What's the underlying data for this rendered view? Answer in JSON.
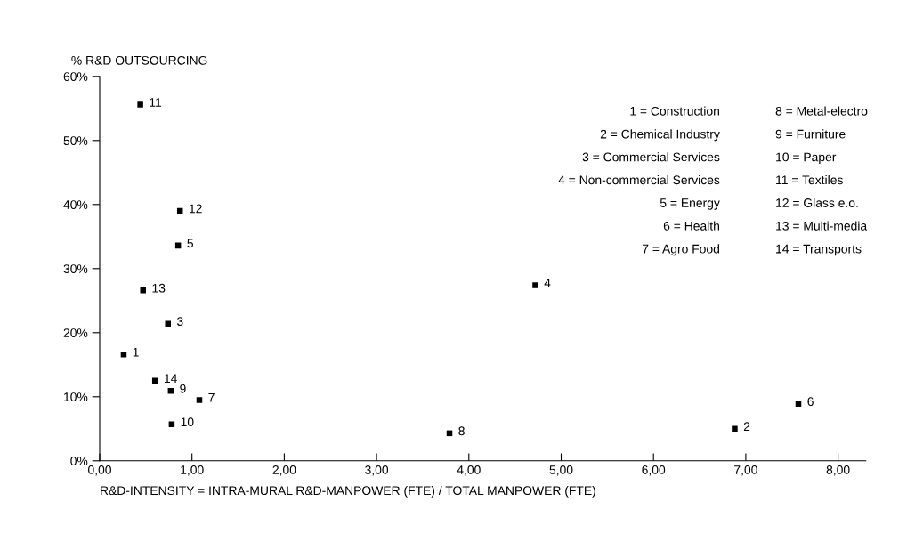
{
  "chart_data": {
    "type": "scatter",
    "ylabel": "% R&D OUTSOURCING",
    "xlabel": "R&D-INTENSITY = INTRA-MURAL R&D-MANPOWER (FTE) / TOTAL MANPOWER (FTE)",
    "x": [
      0.26,
      6.88,
      0.74,
      4.72,
      0.85,
      7.57,
      1.08,
      3.79,
      0.77,
      0.78,
      0.44,
      0.87,
      0.47,
      0.6
    ],
    "values": [
      16.6,
      5.0,
      21.4,
      27.4,
      33.6,
      8.9,
      9.5,
      4.3,
      10.9,
      5.7,
      55.6,
      39.0,
      26.6,
      12.5
    ],
    "color": "#000000",
    "marker": "square",
    "grid": false,
    "legend": false,
    "xlim": [
      0,
      8.3
    ],
    "ylim": [
      0,
      60
    ],
    "xticks": [
      {
        "value": 0,
        "label": "0,00"
      },
      {
        "value": 1,
        "label": "1,00"
      },
      {
        "value": 2,
        "label": "2,00"
      },
      {
        "value": 3,
        "label": "3,00"
      },
      {
        "value": 4,
        "label": "4,00"
      },
      {
        "value": 5,
        "label": "5,00"
      },
      {
        "value": 6,
        "label": "6,00"
      },
      {
        "value": 7,
        "label": "7,00"
      },
      {
        "value": 8,
        "label": "8,00"
      }
    ],
    "yticks": [
      {
        "value": 0,
        "label": "0%"
      },
      {
        "value": 10,
        "label": "10%"
      },
      {
        "value": 20,
        "label": "20%"
      },
      {
        "value": 30,
        "label": "30%"
      },
      {
        "value": 40,
        "label": "40%"
      },
      {
        "value": 50,
        "label": "50%"
      },
      {
        "value": 60,
        "label": "60%"
      }
    ],
    "annotations": [
      {
        "text": "1",
        "x": 0.26,
        "y": 16.6
      },
      {
        "text": "2",
        "x": 6.88,
        "y": 5.0
      },
      {
        "text": "3",
        "x": 0.74,
        "y": 21.4
      },
      {
        "text": "4",
        "x": 4.72,
        "y": 27.4
      },
      {
        "text": "5",
        "x": 0.85,
        "y": 33.6
      },
      {
        "text": "6",
        "x": 7.57,
        "y": 8.9
      },
      {
        "text": "7",
        "x": 1.08,
        "y": 9.5
      },
      {
        "text": "8",
        "x": 3.79,
        "y": 4.3
      },
      {
        "text": "9",
        "x": 0.77,
        "y": 10.9
      },
      {
        "text": "10",
        "x": 0.78,
        "y": 5.7
      },
      {
        "text": "11",
        "x": 0.44,
        "y": 55.6
      },
      {
        "text": "12",
        "x": 0.87,
        "y": 39.0
      },
      {
        "text": "13",
        "x": 0.47,
        "y": 26.6
      },
      {
        "text": "14",
        "x": 0.6,
        "y": 12.5
      },
      "1 = Construction",
      "2 = Chemical Industry",
      "3 = Commercial Services",
      "4 = Non-commercial Services",
      "5 = Energy",
      "6 = Health",
      "7 = Agro Food",
      "8 = Metal-electro",
      "9 = Furniture",
      "10 = Paper",
      "11 = Textiles",
      "12 = Glass e.o.",
      "13 = Multi-media",
      "14 = Transports"
    ]
  }
}
